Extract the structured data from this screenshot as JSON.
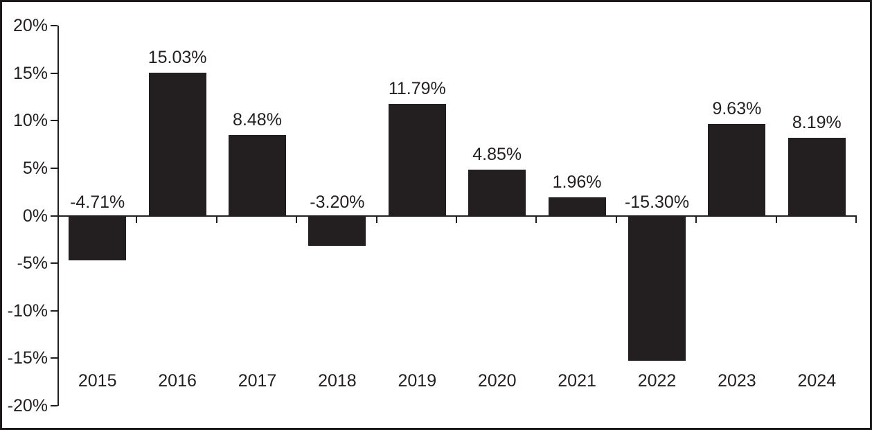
{
  "chart_data": {
    "type": "bar",
    "title": "",
    "xlabel": "",
    "ylabel": "",
    "categories": [
      "2015",
      "2016",
      "2017",
      "2018",
      "2019",
      "2020",
      "2021",
      "2022",
      "2023",
      "2024"
    ],
    "values": [
      -4.71,
      15.03,
      8.48,
      -3.2,
      11.79,
      4.85,
      1.96,
      -15.3,
      9.63,
      8.19
    ],
    "value_labels": [
      "-4.71%",
      "15.03%",
      "8.48%",
      "-3.20%",
      "11.79%",
      "4.85%",
      "1.96%",
      "-15.30%",
      "9.63%",
      "8.19%"
    ],
    "ylim": [
      -20,
      20
    ],
    "y_tick_step": 5,
    "y_tick_labels": [
      "20%",
      "15%",
      "10%",
      "5%",
      "0%",
      "-5%",
      "-10%",
      "-15%",
      "-20%"
    ],
    "grid": false,
    "legend": false,
    "bar_color": "#231f20",
    "axis_color": "#231f20",
    "text_color": "#231f20",
    "background_color": "#ffffff",
    "border_color": "#1c191a"
  }
}
